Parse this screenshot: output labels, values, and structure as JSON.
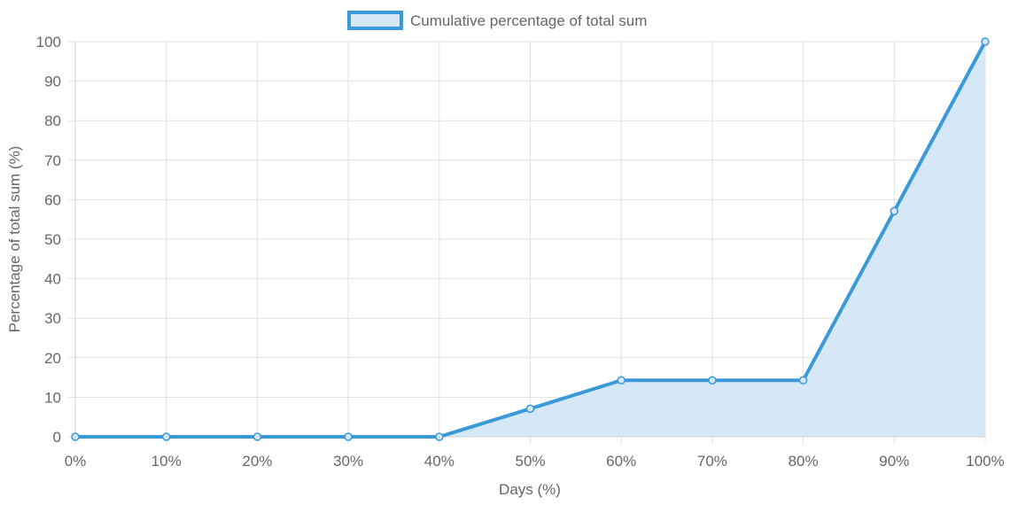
{
  "chart_data": {
    "type": "area",
    "x_unit": "%",
    "x": [
      0,
      10,
      20,
      30,
      40,
      50,
      60,
      70,
      80,
      90,
      100
    ],
    "x_tick_labels": [
      "0%",
      "10%",
      "20%",
      "30%",
      "40%",
      "50%",
      "60%",
      "70%",
      "80%",
      "90%",
      "100%"
    ],
    "series": [
      {
        "name": "Cumulative percentage of total sum",
        "values": [
          0,
          0,
          0,
          0,
          0,
          7.1,
          14.3,
          14.3,
          14.3,
          57.1,
          100
        ],
        "line_color": "#3a99d9",
        "fill_color": "#d6e8f7"
      }
    ],
    "xlabel": "Days (%)",
    "ylabel": "Percentage of total sum (%)",
    "xlim": [
      0,
      100
    ],
    "ylim": [
      0,
      100
    ],
    "y_ticks": [
      0,
      10,
      20,
      30,
      40,
      50,
      60,
      70,
      80,
      90,
      100
    ],
    "grid": true,
    "legend_position": "top-center"
  }
}
